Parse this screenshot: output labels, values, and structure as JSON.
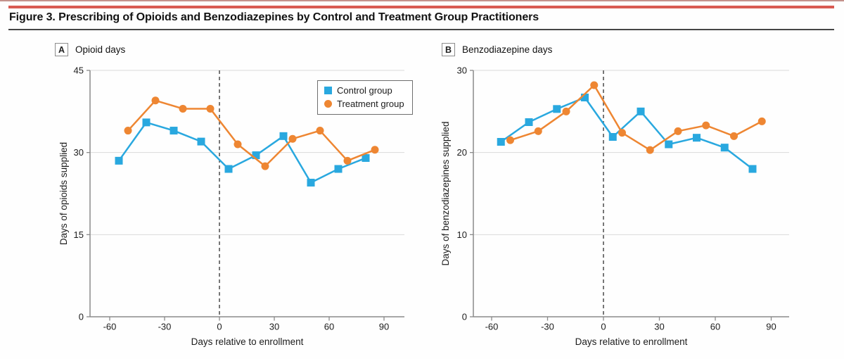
{
  "header": {
    "title": "Figure 3. Prescribing of Opioids and Benzodiazepines by Control and Treatment Group Practitioners",
    "rule_color": "#D95A52"
  },
  "legend": {
    "items": [
      {
        "label": "Control group",
        "marker": "square",
        "color": "#29A8DF"
      },
      {
        "label": "Treatment group",
        "marker": "circle",
        "color": "#EE8632"
      }
    ]
  },
  "chart_data": [
    {
      "type": "line",
      "panel_label": "A",
      "panel_title": "Opioid days",
      "xlabel": "Days relative to enrollment",
      "ylabel": "Days of opioids supplied",
      "xlim": [
        -68,
        101
      ],
      "ylim": [
        0,
        45
      ],
      "xticks": [
        -60,
        -30,
        0,
        30,
        60,
        90
      ],
      "yticks": [
        0,
        15,
        30,
        45
      ],
      "grid": "horizontal",
      "reference_line_x": 0,
      "legend_position": "top-right",
      "series": [
        {
          "name": "Control group",
          "color": "#29A8DF",
          "marker": "square",
          "x": [
            -55,
            -40,
            -25,
            -10,
            5,
            20,
            35,
            50,
            65,
            80
          ],
          "y": [
            28.5,
            35.5,
            34,
            32,
            27,
            29.5,
            33,
            24.5,
            27,
            29
          ]
        },
        {
          "name": "Treatment group",
          "color": "#EE8632",
          "marker": "circle",
          "x": [
            -50,
            -35,
            -20,
            -5,
            10,
            25,
            40,
            55,
            70,
            85
          ],
          "y": [
            34,
            39.5,
            38,
            38,
            31.5,
            27.5,
            32.5,
            34,
            28.5,
            30.5
          ]
        }
      ]
    },
    {
      "type": "line",
      "panel_label": "B",
      "panel_title": "Benzodiazepine days",
      "xlabel": "Days relative to enrollment",
      "ylabel": "Days of benzodiazepines supplied",
      "xlim": [
        -70,
        100
      ],
      "ylim": [
        0,
        30
      ],
      "xticks": [
        -60,
        -30,
        0,
        30,
        60,
        90
      ],
      "yticks": [
        0,
        10,
        20,
        30
      ],
      "grid": "horizontal",
      "reference_line_x": 0,
      "series": [
        {
          "name": "Control group",
          "color": "#29A8DF",
          "marker": "square",
          "x": [
            -55,
            -40,
            -25,
            -10,
            5,
            20,
            35,
            50,
            65,
            80
          ],
          "y": [
            21.3,
            23.7,
            25.3,
            26.7,
            21.9,
            25,
            21,
            21.8,
            20.6,
            18
          ]
        },
        {
          "name": "Treatment group",
          "color": "#EE8632",
          "marker": "circle",
          "x": [
            -50,
            -35,
            -20,
            -5,
            10,
            25,
            40,
            55,
            70,
            85
          ],
          "y": [
            21.5,
            22.6,
            25,
            28.2,
            22.4,
            20.3,
            22.6,
            23.3,
            22,
            23.8
          ]
        }
      ]
    }
  ]
}
